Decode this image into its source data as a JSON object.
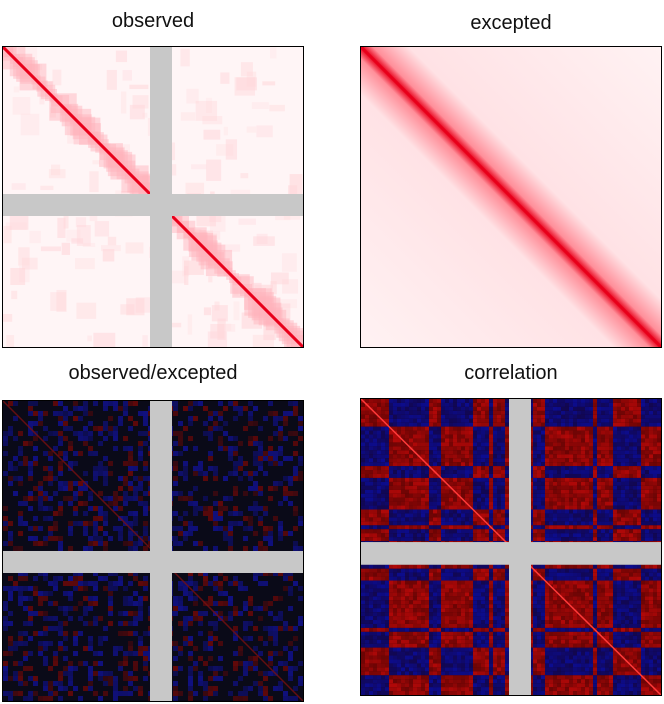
{
  "panels": {
    "observed": {
      "title": "observed"
    },
    "expected": {
      "title": "excepted"
    },
    "obs_exp": {
      "title": "observed/excepted"
    },
    "correlation": {
      "title": "correlation"
    }
  },
  "colors": {
    "red": "#e8001a",
    "light_pink": "#fff2f3",
    "gap_gray": "#c8c8c8",
    "blue": "#0a0a8c",
    "dark_red": "#a00000",
    "black": "#000000"
  }
}
